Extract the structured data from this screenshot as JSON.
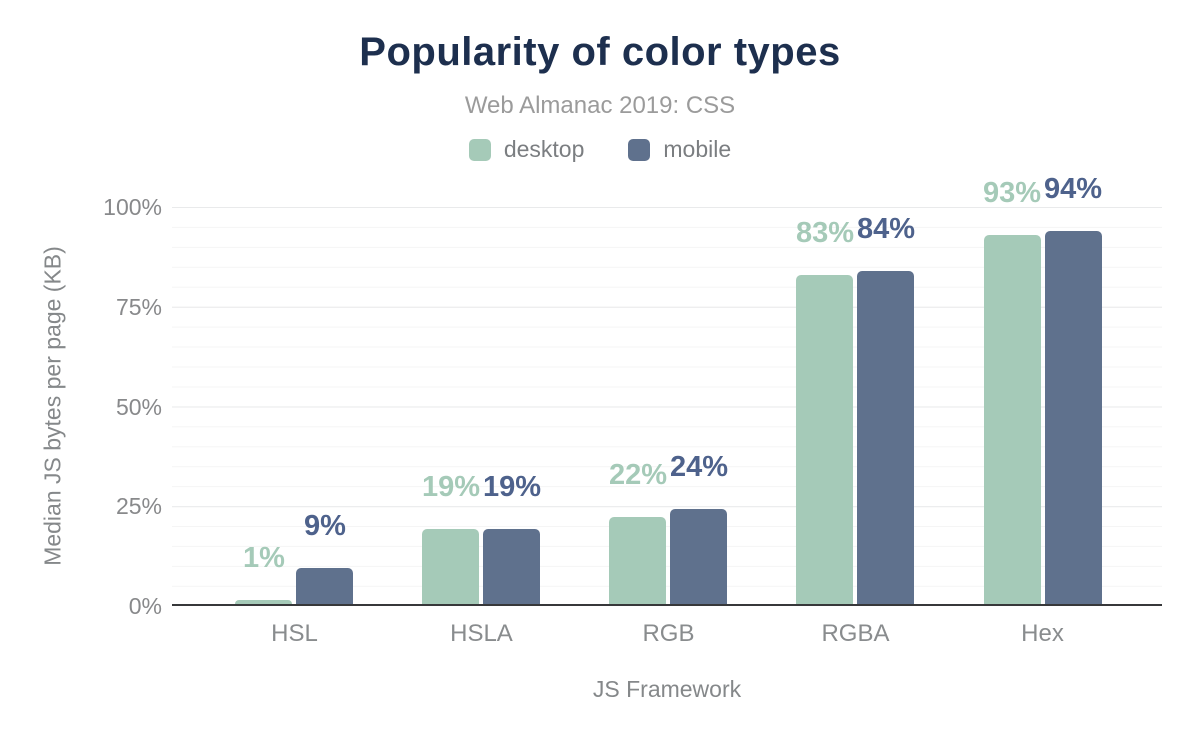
{
  "header": {
    "title": "Popularity of color types",
    "subtitle": "Web Almanac 2019: CSS"
  },
  "chart_data": {
    "type": "bar",
    "title": "Popularity of color types",
    "subtitle": "Web Almanac 2019: CSS",
    "categories": [
      "HSL",
      "HSLA",
      "RGB",
      "RGBA",
      "Hex"
    ],
    "series": [
      {
        "name": "desktop",
        "values": [
          1,
          19,
          22,
          83,
          93
        ],
        "color": "#a5cab8",
        "label_color": "#a5cab8"
      },
      {
        "name": "mobile",
        "values": [
          9,
          19,
          24,
          84,
          94
        ],
        "color": "#5f718d",
        "label_color": "#4e628c"
      }
    ],
    "value_suffix": "%",
    "xlabel": "JS Framework",
    "ylabel": "Median JS bytes per page (KB)",
    "yticks": [
      "0%",
      "25%",
      "50%",
      "75%",
      "100%"
    ],
    "ylim": [
      0,
      100
    ],
    "grid": "horizontal; minor lines every 5%, major lines every 25%",
    "legend_position": "top-center",
    "bar_labels": {
      "desktop": [
        "1%",
        "19%",
        "22%",
        "83%",
        "93%"
      ],
      "mobile": [
        "9%",
        "19%",
        "24%",
        "84%",
        "94%"
      ]
    }
  },
  "colors": {
    "background": "#ffffff",
    "title": "#1d2f4e",
    "subtitle": "#9b9b9b",
    "legend_text": "#7b7e81",
    "axis_text": "#87898c",
    "axis_line": "#37383a",
    "grid_minor": "#f5f5f5",
    "grid_major": "#e9eaeb",
    "desktop": "#a5cab8",
    "mobile": "#5f718d"
  }
}
